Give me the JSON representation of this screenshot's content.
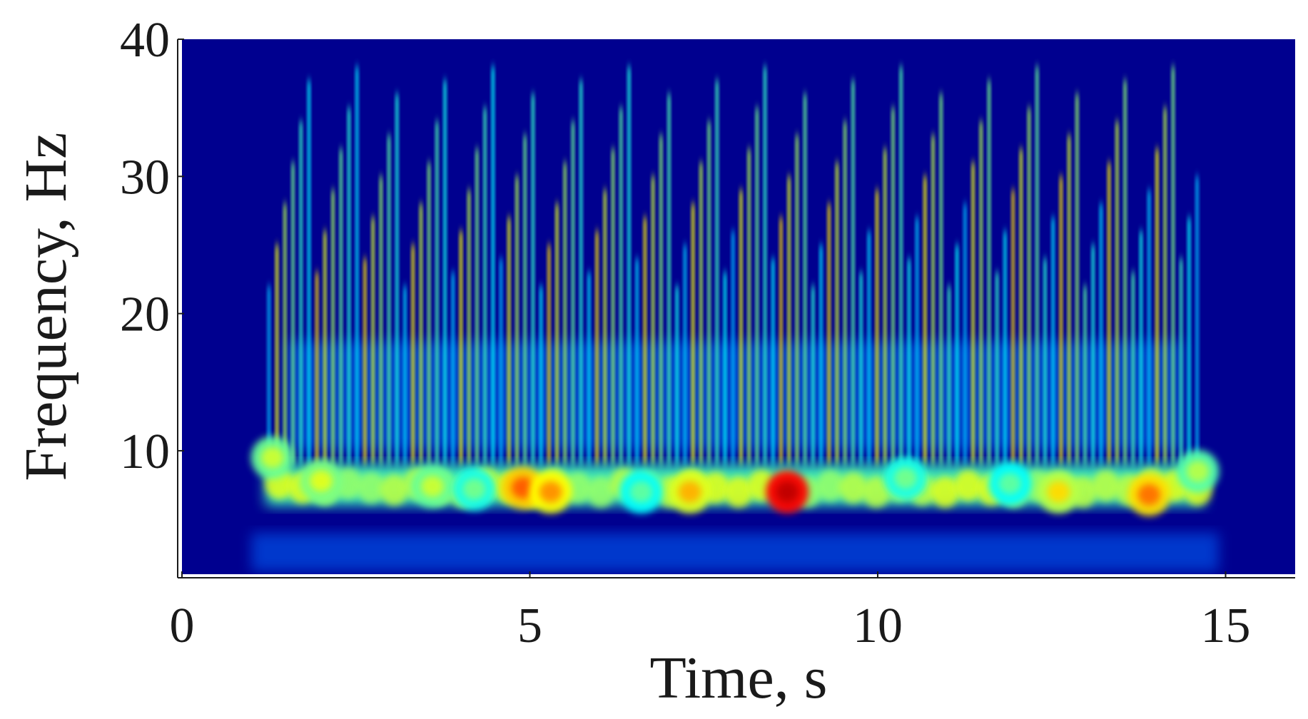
{
  "chart_data": {
    "type": "heatmap",
    "title": "",
    "xlabel": "Time, s",
    "ylabel": "Frequency, Hz",
    "xlim": [
      0,
      16
    ],
    "ylim": [
      1,
      40
    ],
    "x_ticks": [
      0,
      5,
      10,
      15
    ],
    "y_ticks": [
      10,
      20,
      30,
      40
    ],
    "x_tick_labels": [
      "0",
      "5",
      "10",
      "15"
    ],
    "y_tick_labels": [
      "10",
      "20",
      "30",
      "40"
    ],
    "colormap": [
      "#00008f",
      "#0000ff",
      "#00ffff",
      "#ffff00",
      "#ff0000",
      "#800000"
    ],
    "background_color": "#00008f",
    "grid": false,
    "signal_time_range": [
      1.2,
      14.7
    ],
    "dominant_band_hz": [
      6,
      9
    ],
    "hotspots": [
      {
        "time": 1.3,
        "freq": 9.5,
        "intensity": 0.6
      },
      {
        "time": 2.0,
        "freq": 7.8,
        "intensity": 0.62
      },
      {
        "time": 3.6,
        "freq": 7.4,
        "intensity": 0.6
      },
      {
        "time": 4.2,
        "freq": 7.2,
        "intensity": 0.52
      },
      {
        "time": 4.9,
        "freq": 7.3,
        "intensity": 0.8
      },
      {
        "time": 5.3,
        "freq": 7.0,
        "intensity": 0.75
      },
      {
        "time": 6.6,
        "freq": 7.0,
        "intensity": 0.5
      },
      {
        "time": 7.3,
        "freq": 7.0,
        "intensity": 0.72
      },
      {
        "time": 8.7,
        "freq": 7.0,
        "intensity": 1.0
      },
      {
        "time": 10.4,
        "freq": 8.0,
        "intensity": 0.52
      },
      {
        "time": 11.9,
        "freq": 7.6,
        "intensity": 0.5
      },
      {
        "time": 12.6,
        "freq": 7.0,
        "intensity": 0.68
      },
      {
        "time": 13.9,
        "freq": 6.8,
        "intensity": 0.78
      },
      {
        "time": 14.6,
        "freq": 8.5,
        "intensity": 0.58
      }
    ]
  }
}
